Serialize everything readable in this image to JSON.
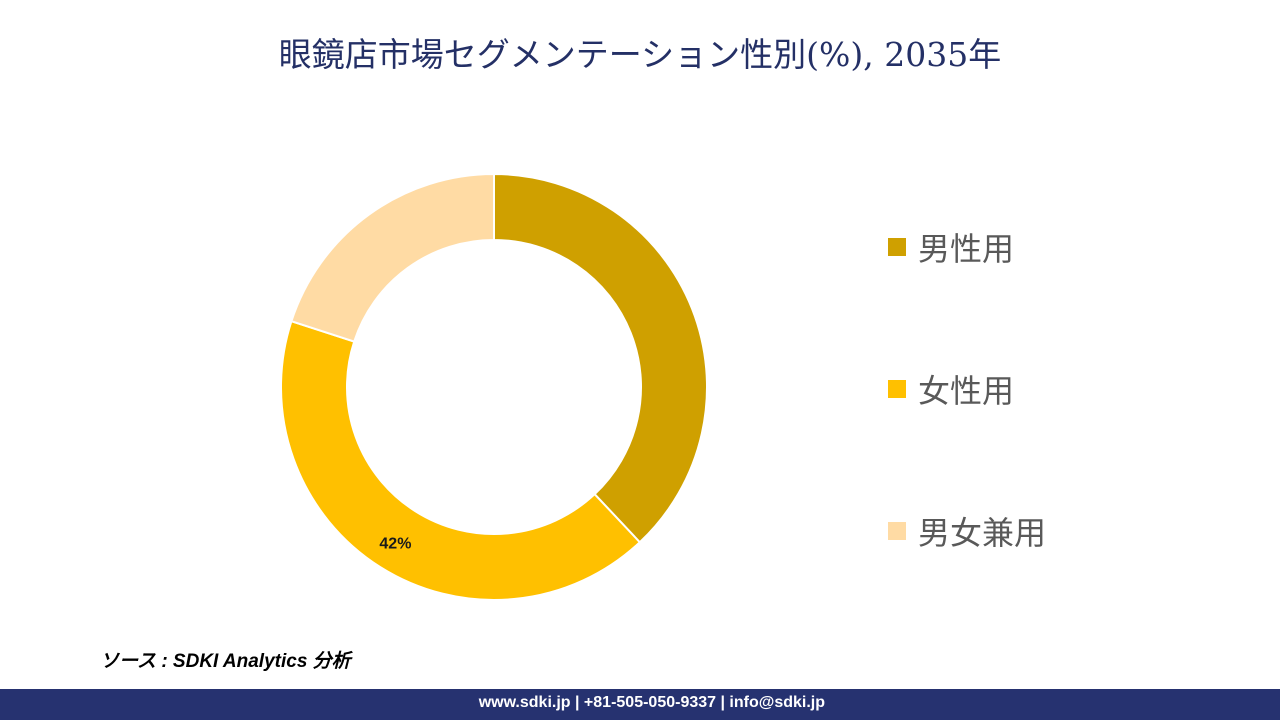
{
  "title": "眼鏡店市場セグメンテーション性別(%), 2035年",
  "chart_data": {
    "type": "pie",
    "donut": true,
    "title": "眼鏡店市場セグメンテーション性別(%), 2035年",
    "categories": [
      "男性用",
      "女性用",
      "男女兼用"
    ],
    "values": [
      38,
      42,
      20
    ],
    "colors": [
      "#CFA000",
      "#FFC000",
      "#FFDBA4"
    ],
    "data_labels": [
      null,
      "42%",
      null
    ],
    "legend": "right"
  },
  "source": "ソース : SDKI Analytics 分析",
  "footer": "www.sdki.jp | +81-505-050-9337 | info@sdki.jp"
}
